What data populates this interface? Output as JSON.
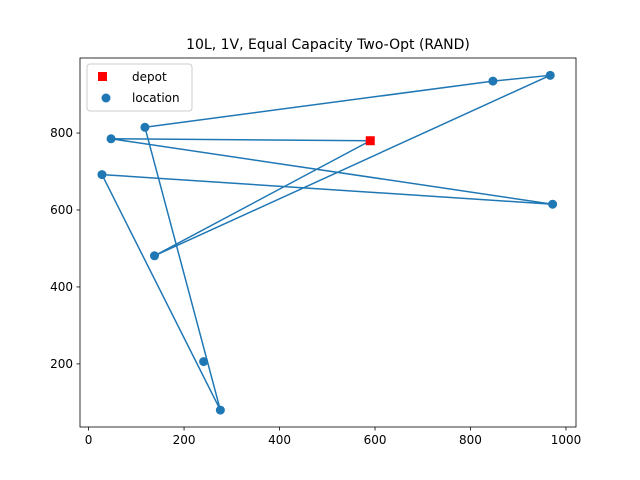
{
  "chart_data": {
    "type": "scatter",
    "title": "10L, 1V, Equal Capacity Two-Opt (RAND)",
    "xlabel": "",
    "ylabel": "",
    "xlim": [
      -18,
      1021
    ],
    "ylim": [
      36,
      995
    ],
    "xticks": [
      0,
      200,
      400,
      600,
      800,
      1000
    ],
    "yticks": [
      200,
      400,
      600,
      800
    ],
    "grid": false,
    "legend_position": "top-left",
    "colors": {
      "depot": "#ff0000",
      "location": "#1f77b4",
      "route": "#1f77b4"
    },
    "series": [
      {
        "name": "depot",
        "marker": "square",
        "points": [
          [
            590,
            780
          ]
        ]
      },
      {
        "name": "location",
        "marker": "circle",
        "points": [
          [
            967,
            950
          ],
          [
            847,
            935
          ],
          [
            118,
            815
          ],
          [
            47,
            785
          ],
          [
            972,
            615
          ],
          [
            28,
            692
          ],
          [
            138,
            481
          ],
          [
            241,
            206
          ],
          [
            276,
            80
          ]
        ]
      }
    ],
    "route": [
      [
        590,
        780
      ],
      [
        47,
        785
      ],
      [
        972,
        615
      ],
      [
        28,
        692
      ],
      [
        276,
        80
      ],
      [
        118,
        815
      ],
      [
        847,
        935
      ],
      [
        967,
        950
      ],
      [
        138,
        481
      ],
      [
        590,
        780
      ]
    ]
  }
}
